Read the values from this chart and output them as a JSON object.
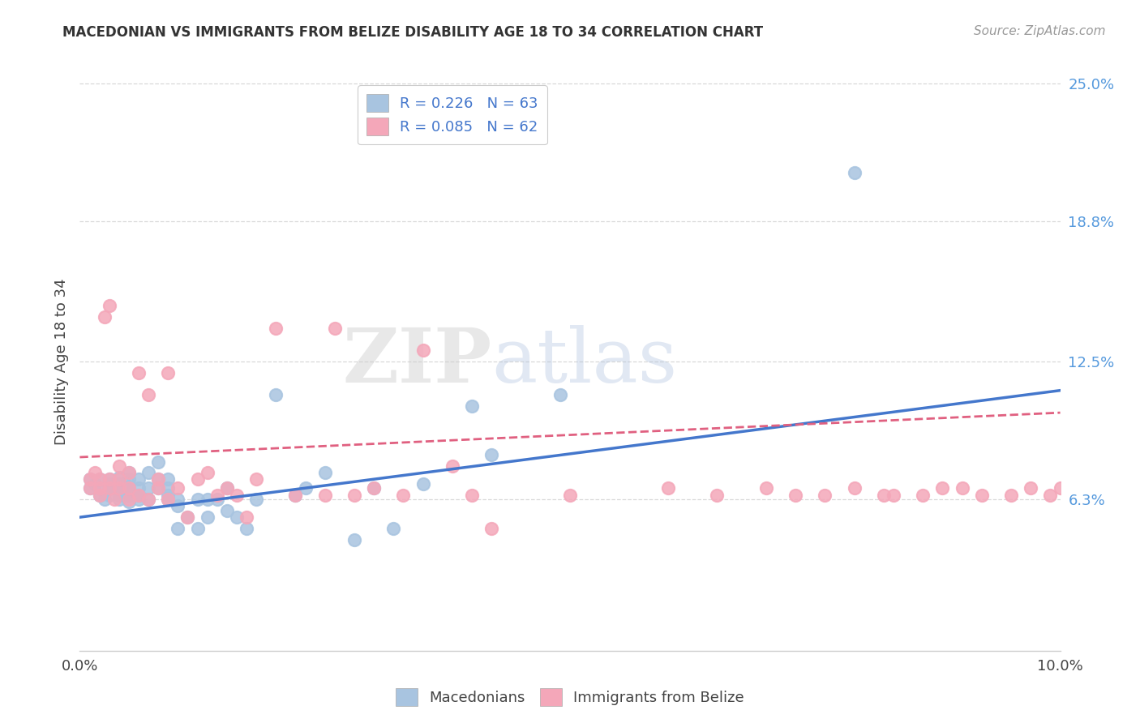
{
  "title": "MACEDONIAN VS IMMIGRANTS FROM BELIZE DISABILITY AGE 18 TO 34 CORRELATION CHART",
  "source": "Source: ZipAtlas.com",
  "ylabel": "Disability Age 18 to 34",
  "xlim": [
    0.0,
    0.1
  ],
  "ylim": [
    -0.005,
    0.255
  ],
  "x_ticks": [
    0.0,
    0.1
  ],
  "x_tick_labels": [
    "0.0%",
    "10.0%"
  ],
  "y_tick_labels_right": [
    "6.3%",
    "12.5%",
    "18.8%",
    "25.0%"
  ],
  "y_tick_vals_right": [
    0.063,
    0.125,
    0.188,
    0.25
  ],
  "macedonian_color": "#a8c4e0",
  "belize_color": "#f4a7b9",
  "macedonian_line_color": "#4477cc",
  "belize_line_color": "#e06080",
  "watermark_zip": "ZIP",
  "watermark_atlas": "atlas",
  "background_color": "#ffffff",
  "grid_color": "#d8d8d8",
  "mac_x": [
    0.001,
    0.001,
    0.0015,
    0.002,
    0.002,
    0.002,
    0.0025,
    0.003,
    0.003,
    0.003,
    0.003,
    0.0035,
    0.004,
    0.004,
    0.004,
    0.004,
    0.004,
    0.005,
    0.005,
    0.005,
    0.005,
    0.005,
    0.005,
    0.006,
    0.006,
    0.006,
    0.006,
    0.007,
    0.007,
    0.007,
    0.008,
    0.008,
    0.008,
    0.009,
    0.009,
    0.009,
    0.009,
    0.01,
    0.01,
    0.01,
    0.011,
    0.012,
    0.012,
    0.013,
    0.013,
    0.014,
    0.015,
    0.015,
    0.016,
    0.017,
    0.018,
    0.02,
    0.022,
    0.023,
    0.025,
    0.028,
    0.03,
    0.032,
    0.035,
    0.04,
    0.042,
    0.049,
    0.079
  ],
  "mac_y": [
    0.068,
    0.072,
    0.07,
    0.065,
    0.068,
    0.072,
    0.063,
    0.065,
    0.068,
    0.07,
    0.072,
    0.068,
    0.063,
    0.065,
    0.068,
    0.07,
    0.073,
    0.062,
    0.065,
    0.067,
    0.069,
    0.072,
    0.075,
    0.063,
    0.065,
    0.068,
    0.072,
    0.063,
    0.068,
    0.075,
    0.068,
    0.072,
    0.08,
    0.063,
    0.065,
    0.068,
    0.072,
    0.05,
    0.06,
    0.063,
    0.055,
    0.05,
    0.063,
    0.055,
    0.063,
    0.063,
    0.058,
    0.068,
    0.055,
    0.05,
    0.063,
    0.11,
    0.065,
    0.068,
    0.075,
    0.045,
    0.068,
    0.05,
    0.07,
    0.105,
    0.083,
    0.11,
    0.21
  ],
  "bel_x": [
    0.001,
    0.001,
    0.0015,
    0.002,
    0.002,
    0.002,
    0.0025,
    0.003,
    0.003,
    0.003,
    0.0035,
    0.004,
    0.004,
    0.004,
    0.005,
    0.005,
    0.005,
    0.006,
    0.006,
    0.007,
    0.007,
    0.008,
    0.008,
    0.009,
    0.009,
    0.01,
    0.011,
    0.012,
    0.013,
    0.014,
    0.015,
    0.016,
    0.017,
    0.018,
    0.02,
    0.022,
    0.025,
    0.026,
    0.028,
    0.03,
    0.033,
    0.035,
    0.038,
    0.04,
    0.042,
    0.05,
    0.06,
    0.065,
    0.07,
    0.073,
    0.076,
    0.079,
    0.082,
    0.083,
    0.086,
    0.088,
    0.09,
    0.092,
    0.095,
    0.097,
    0.099,
    0.1
  ],
  "bel_y": [
    0.068,
    0.072,
    0.075,
    0.065,
    0.068,
    0.072,
    0.145,
    0.068,
    0.072,
    0.15,
    0.063,
    0.068,
    0.072,
    0.078,
    0.063,
    0.068,
    0.075,
    0.065,
    0.12,
    0.063,
    0.11,
    0.068,
    0.072,
    0.063,
    0.12,
    0.068,
    0.055,
    0.072,
    0.075,
    0.065,
    0.068,
    0.065,
    0.055,
    0.072,
    0.14,
    0.065,
    0.065,
    0.14,
    0.065,
    0.068,
    0.065,
    0.13,
    0.078,
    0.065,
    0.05,
    0.065,
    0.068,
    0.065,
    0.068,
    0.065,
    0.065,
    0.068,
    0.065,
    0.065,
    0.065,
    0.068,
    0.068,
    0.065,
    0.065,
    0.068,
    0.065,
    0.068
  ],
  "mac_line_x0": 0.0,
  "mac_line_x1": 0.1,
  "mac_line_y0": 0.055,
  "mac_line_y1": 0.112,
  "bel_line_x0": 0.0,
  "bel_line_x1": 0.1,
  "bel_line_y0": 0.082,
  "bel_line_y1": 0.102
}
